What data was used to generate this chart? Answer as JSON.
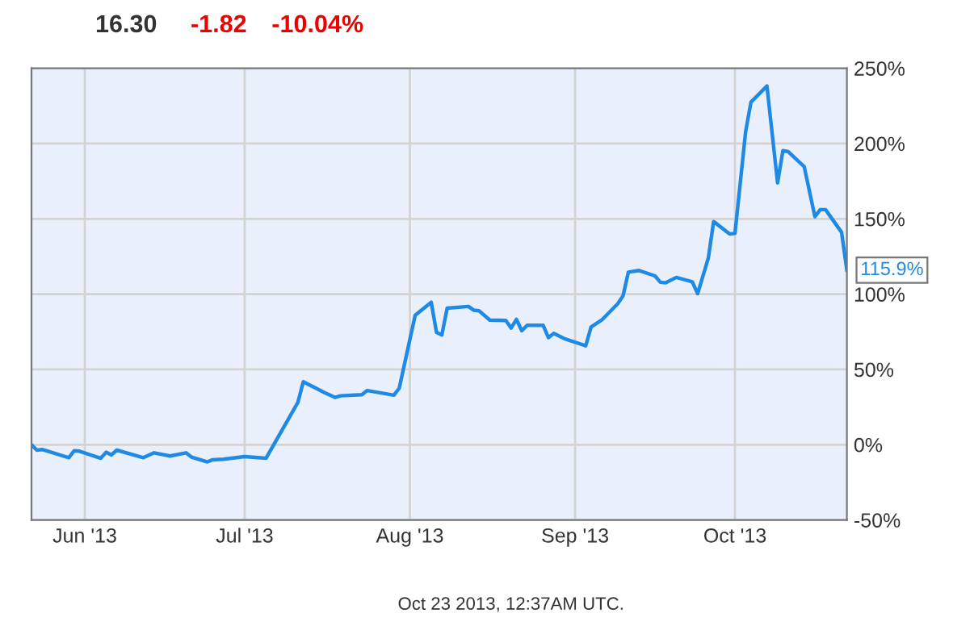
{
  "chart_data": {
    "type": "line",
    "title": "16.30",
    "annotations": [
      "-1.82",
      "-10.04%",
      "Oct 23 2013, 12:37AM UTC."
    ],
    "x": [
      "2013-05-22",
      "2013-05-23",
      "2013-05-24",
      "2013-05-29",
      "2013-05-30",
      "2013-05-31",
      "2013-06-04",
      "2013-06-05",
      "2013-06-06",
      "2013-06-07",
      "2013-06-12",
      "2013-06-14",
      "2013-06-17",
      "2013-06-20",
      "2013-06-21",
      "2013-06-24",
      "2013-06-25",
      "2013-06-27",
      "2013-07-01",
      "2013-07-05",
      "2013-07-08",
      "2013-07-11",
      "2013-07-12",
      "2013-07-16",
      "2013-07-18",
      "2013-07-19",
      "2013-07-23",
      "2013-07-24",
      "2013-07-29",
      "2013-07-30",
      "2013-08-02",
      "2013-08-05",
      "2013-08-06",
      "2013-08-07",
      "2013-08-08",
      "2013-08-12",
      "2013-08-13",
      "2013-08-14",
      "2013-08-16",
      "2013-08-19",
      "2013-08-20",
      "2013-08-21",
      "2013-08-22",
      "2013-08-23",
      "2013-08-26",
      "2013-08-27",
      "2013-08-28",
      "2013-08-30",
      "2013-09-03",
      "2013-09-04",
      "2013-09-06",
      "2013-09-09",
      "2013-09-10",
      "2013-09-11",
      "2013-09-13",
      "2013-09-16",
      "2013-09-17",
      "2013-09-18",
      "2013-09-20",
      "2013-09-23",
      "2013-09-24",
      "2013-09-26",
      "2013-09-27",
      "2013-09-30",
      "2013-10-01",
      "2013-10-03",
      "2013-10-04",
      "2013-10-07",
      "2013-10-09",
      "2013-10-10",
      "2013-10-11",
      "2013-10-14",
      "2013-10-16",
      "2013-10-17",
      "2013-10-18",
      "2013-10-21",
      "2013-10-22"
    ],
    "series": [
      {
        "color": "#1f8ae6",
        "values": [
          0,
          -3.6,
          -3.2,
          -8.6,
          -4,
          -4.3,
          -9,
          -5,
          -6.8,
          -3.6,
          -8.6,
          -5.4,
          -7.5,
          -5.4,
          -8.2,
          -11.4,
          -10,
          -9.6,
          -7.9,
          -9,
          9.6,
          28.2,
          41.8,
          34.6,
          31.4,
          32.5,
          33.2,
          36,
          32.9,
          37.5,
          86,
          94.6,
          74.6,
          72.9,
          90.7,
          91.8,
          89.3,
          88.9,
          82.8,
          82.5,
          77.5,
          83.2,
          75.7,
          79.3,
          79.3,
          71.1,
          73.9,
          70.4,
          65.7,
          78.2,
          82.8,
          93.6,
          98.9,
          114.6,
          115.7,
          112.1,
          107.9,
          107.5,
          111.1,
          108.2,
          100.3,
          123.9,
          148.2,
          140,
          140.3,
          207.8,
          227.5,
          238.2,
          173.9,
          195.3,
          194.6,
          184.6,
          151.4,
          156.1,
          156.1,
          141.1,
          115.9
        ],
        "value_labels": [
          null,
          null,
          null,
          null,
          null,
          null,
          null,
          null,
          null,
          null,
          null,
          null,
          null,
          null,
          null,
          null,
          null,
          null,
          null,
          null,
          null,
          null,
          null,
          null,
          null,
          null,
          null,
          null,
          null,
          null,
          null,
          null,
          null,
          null,
          null,
          null,
          null,
          null,
          null,
          null,
          null,
          null,
          null,
          null,
          null,
          null,
          null,
          null,
          null,
          null,
          null,
          null,
          null,
          null,
          null,
          null,
          null,
          null,
          null,
          null,
          null,
          null,
          null,
          null,
          null,
          null,
          null,
          null,
          null,
          null,
          null,
          null,
          null,
          null,
          null,
          null,
          "115.9%"
        ]
      }
    ],
    "xlim": [
      "2013-05-22",
      "2013-10-22"
    ],
    "xticks": [
      {
        "value": "2013-06-01",
        "label": "Jun '13"
      },
      {
        "value": "2013-07-01",
        "label": "Jul '13"
      },
      {
        "value": "2013-08-01",
        "label": "Aug '13"
      },
      {
        "value": "2013-09-01",
        "label": "Sep '13"
      },
      {
        "value": "2013-10-01",
        "label": "Oct '13"
      }
    ],
    "ylim": [
      -50,
      250
    ],
    "yticks": [
      {
        "value": -50,
        "label": "-50%"
      },
      {
        "value": 0,
        "label": "0%"
      },
      {
        "value": 50,
        "label": "50%"
      },
      {
        "value": 100,
        "label": "100%"
      },
      {
        "value": 150,
        "label": "150%"
      },
      {
        "value": 200,
        "label": "200%"
      },
      {
        "value": 250,
        "label": "250%"
      }
    ],
    "grid": true,
    "legend": false,
    "marker": "none",
    "line_style": "solid"
  }
}
